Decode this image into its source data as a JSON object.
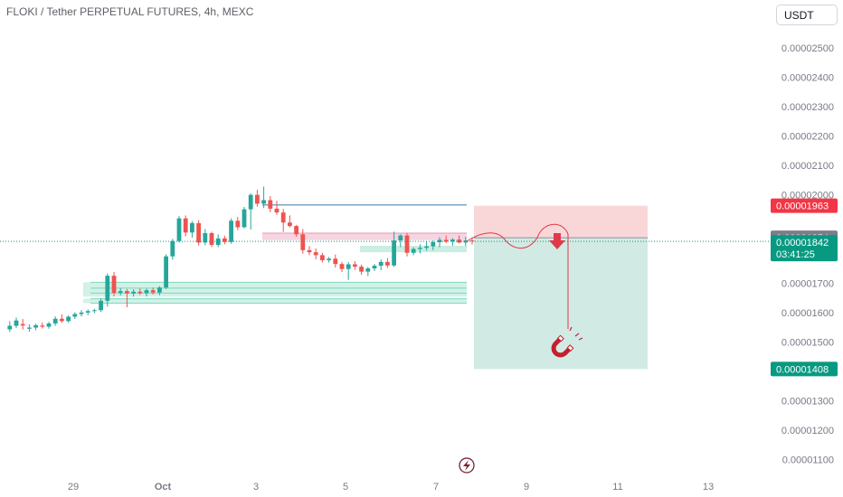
{
  "header": {
    "title": "FLOKI / Tether PERPETUAL FUTURES, 4h, MEXC"
  },
  "currency_button": {
    "label": "USDT"
  },
  "colors": {
    "up": "#26a69a",
    "down": "#ef5350",
    "stop_zone": "#f7cdd0",
    "target_zone": "#cce8e1",
    "current_price_tag": "#089981",
    "target_tag": "#089981",
    "stop_tag": "#f23645",
    "ref_tag": "#7c7f88"
  },
  "price_tags": {
    "stop": "0.00001963",
    "ref": "0.00001854",
    "current": "0.00001842",
    "countdown": "03:41:25",
    "target": "0.00001408"
  },
  "icons": {
    "magnet": "magnet-icon",
    "lightning": "lightning-icon",
    "arrow": "arrow-down-icon"
  },
  "chart_data": {
    "type": "candlestick",
    "symbol": "FLOKI / Tether PERPETUAL FUTURES",
    "interval": "4h",
    "exchange": "MEXC",
    "y_axis_ticks": [
      "0.00002500",
      "0.00002400",
      "0.00002300",
      "0.00002200",
      "0.00002100",
      "0.00002000",
      "0.00001700",
      "0.00001600",
      "0.00001500",
      "0.00001300",
      "0.00001200",
      "0.00001100"
    ],
    "ylim": [
      1.05e-05,
      2.57e-05
    ],
    "x_axis_ticks": [
      "29",
      "Oct",
      "3",
      "5",
      "7",
      "9",
      "11",
      "13"
    ],
    "candles": [
      [
        1.0,
        1.543e-05,
        1.571e-05,
        1.534e-05,
        1.555e-05
      ],
      [
        2.5,
        1.555e-05,
        1.583e-05,
        1.548e-05,
        1.573e-05
      ],
      [
        4.0,
        1.561e-05,
        1.578e-05,
        1.542e-05,
        1.556e-05
      ],
      [
        5.5,
        1.545e-05,
        1.56e-05,
        1.535e-05,
        1.549e-05
      ],
      [
        7.0,
        1.549e-05,
        1.562e-05,
        1.54e-05,
        1.557e-05
      ],
      [
        8.5,
        1.556e-05,
        1.566e-05,
        1.546e-05,
        1.552e-05
      ],
      [
        10.0,
        1.552e-05,
        1.568e-05,
        1.545e-05,
        1.563e-05
      ],
      [
        11.5,
        1.563e-05,
        1.587e-05,
        1.555e-05,
        1.579e-05
      ],
      [
        13.0,
        1.579e-05,
        1.594e-05,
        1.565e-05,
        1.571e-05
      ],
      [
        14.5,
        1.571e-05,
        1.59e-05,
        1.566e-05,
        1.586e-05
      ],
      [
        16.0,
        1.586e-05,
        1.601e-05,
        1.578e-05,
        1.595e-05
      ],
      [
        17.5,
        1.595e-05,
        1.608e-05,
        1.587e-05,
        1.6e-05
      ],
      [
        19.0,
        1.6e-05,
        1.611e-05,
        1.591e-05,
        1.605e-05
      ],
      [
        20.5,
        1.605e-05,
        1.613e-05,
        1.598e-05,
        1.608e-05
      ],
      [
        22.0,
        1.608e-05,
        1.648e-05,
        1.602e-05,
        1.64e-05
      ],
      [
        23.5,
        1.64e-05,
        1.733e-05,
        1.62e-05,
        1.725e-05
      ],
      [
        25.0,
        1.725e-05,
        1.738e-05,
        1.655e-05,
        1.667e-05
      ],
      [
        26.5,
        1.667e-05,
        1.684e-05,
        1.658e-05,
        1.673e-05
      ],
      [
        28.0,
        1.673e-05,
        1.68e-05,
        1.618e-05,
        1.665e-05
      ],
      [
        29.5,
        1.665e-05,
        1.679e-05,
        1.654e-05,
        1.671e-05
      ],
      [
        31.0,
        1.671e-05,
        1.682e-05,
        1.66e-05,
        1.666e-05
      ],
      [
        32.5,
        1.666e-05,
        1.681e-05,
        1.655e-05,
        1.676e-05
      ],
      [
        34.0,
        1.676e-05,
        1.685e-05,
        1.661e-05,
        1.668e-05
      ],
      [
        35.5,
        1.668e-05,
        1.69e-05,
        1.659e-05,
        1.685e-05
      ],
      [
        37.0,
        1.685e-05,
        1.798e-05,
        1.68e-05,
        1.791e-05
      ],
      [
        38.5,
        1.791e-05,
        1.85e-05,
        1.78e-05,
        1.843e-05
      ],
      [
        40.0,
        1.843e-05,
        1.928e-05,
        1.838e-05,
        1.92e-05
      ],
      [
        41.5,
        1.92e-05,
        1.93e-05,
        1.859e-05,
        1.872e-05
      ],
      [
        43.0,
        1.872e-05,
        1.911e-05,
        1.854e-05,
        1.904e-05
      ],
      [
        44.5,
        1.904e-05,
        1.914e-05,
        1.828e-05,
        1.838e-05
      ],
      [
        46.0,
        1.838e-05,
        1.884e-05,
        1.829e-05,
        1.87e-05
      ],
      [
        47.5,
        1.87e-05,
        1.875e-05,
        1.823e-05,
        1.83e-05
      ],
      [
        49.0,
        1.83e-05,
        1.866e-05,
        1.822e-05,
        1.852e-05
      ],
      [
        50.5,
        1.852e-05,
        1.861e-05,
        1.832e-05,
        1.84e-05
      ],
      [
        52.0,
        1.84e-05,
        1.92e-05,
        1.834e-05,
        1.912e-05
      ],
      [
        53.5,
        1.912e-05,
        1.925e-05,
        1.88e-05,
        1.89e-05
      ],
      [
        55.0,
        1.89e-05,
        1.959e-05,
        1.886e-05,
        1.951e-05
      ],
      [
        56.5,
        1.951e-05,
        2.005e-05,
        1.882e-05,
        2e-05
      ],
      [
        58.0,
        2e-05,
        2.017e-05,
        1.96e-05,
        1.97e-05
      ],
      [
        59.5,
        1.97e-05,
        2.028e-05,
        1.955e-05,
        1.982e-05
      ],
      [
        61.0,
        1.982e-05,
        1.996e-05,
        1.941e-05,
        1.953e-05
      ],
      [
        62.5,
        1.953e-05,
        1.98e-05,
        1.932e-05,
        1.94e-05
      ],
      [
        64.0,
        1.94e-05,
        1.952e-05,
        1.874e-05,
        1.906e-05
      ],
      [
        65.5,
        1.906e-05,
        1.93e-05,
        1.889e-05,
        1.894e-05
      ],
      [
        67.0,
        1.894e-05,
        1.898e-05,
        1.858e-05,
        1.866e-05
      ],
      [
        68.5,
        1.866e-05,
        1.884e-05,
        1.8e-05,
        1.812e-05
      ],
      [
        70.0,
        1.812e-05,
        1.826e-05,
        1.795e-05,
        1.805e-05
      ],
      [
        71.5,
        1.805e-05,
        1.818e-05,
        1.781e-05,
        1.795e-05
      ],
      [
        73.0,
        1.795e-05,
        1.803e-05,
        1.77e-05,
        1.778e-05
      ],
      [
        74.5,
        1.778e-05,
        1.789e-05,
        1.77e-05,
        1.783e-05
      ],
      [
        76.0,
        1.783e-05,
        1.797e-05,
        1.753e-05,
        1.765e-05
      ],
      [
        77.5,
        1.765e-05,
        1.772e-05,
        1.738e-05,
        1.748e-05
      ],
      [
        79.0,
        1.748e-05,
        1.772e-05,
        1.711e-05,
        1.764e-05
      ],
      [
        80.5,
        1.764e-05,
        1.775e-05,
        1.745e-05,
        1.756e-05
      ],
      [
        82.0,
        1.756e-05,
        1.763e-05,
        1.728e-05,
        1.739e-05
      ],
      [
        83.5,
        1.739e-05,
        1.755e-05,
        1.724e-05,
        1.75e-05
      ],
      [
        85.0,
        1.75e-05,
        1.765e-05,
        1.741e-05,
        1.759e-05
      ],
      [
        86.5,
        1.759e-05,
        1.781e-05,
        1.744e-05,
        1.772e-05
      ],
      [
        88.0,
        1.772e-05,
        1.785e-05,
        1.752e-05,
        1.76e-05
      ],
      [
        89.5,
        1.76e-05,
        1.875e-05,
        1.755e-05,
        1.845e-05
      ],
      [
        91.0,
        1.845e-05,
        1.866e-05,
        1.822e-05,
        1.862e-05
      ],
      [
        92.5,
        1.862e-05,
        1.871e-05,
        1.791e-05,
        1.803e-05
      ],
      [
        94.0,
        1.803e-05,
        1.822e-05,
        1.795e-05,
        1.816e-05
      ],
      [
        95.5,
        1.816e-05,
        1.832e-05,
        1.801e-05,
        1.82e-05
      ],
      [
        97.0,
        1.82e-05,
        1.841e-05,
        1.81e-05,
        1.825e-05
      ],
      [
        98.5,
        1.825e-05,
        1.845e-05,
        1.812e-05,
        1.839e-05
      ],
      [
        100.0,
        1.839e-05,
        1.856e-05,
        1.822e-05,
        1.847e-05
      ],
      [
        101.5,
        1.847e-05,
        1.862e-05,
        1.836e-05,
        1.841e-05
      ],
      [
        103.0,
        1.841e-05,
        1.853e-05,
        1.827e-05,
        1.848e-05
      ],
      [
        104.5,
        1.848e-05,
        1.862e-05,
        1.835e-05,
        1.838e-05
      ],
      [
        106.0,
        1.838e-05,
        1.857e-05,
        1.826e-05,
        1.845e-05
      ],
      [
        107.5,
        1.845e-05,
        1.855e-05,
        1.831e-05,
        1.842e-05
      ]
    ],
    "zones": {
      "short_position": {
        "entry": 1.854e-05,
        "stop": 1.963e-05,
        "target": 1.408e-05
      },
      "resistance_band": [
        1.846e-05,
        1.87e-05
      ],
      "support_bands": [
        [
          1.654e-05,
          1.703e-05
        ],
        [
          1.632e-05,
          1.647e-05
        ]
      ],
      "top_line": 1.966e-05
    },
    "current_price": 1.842e-05
  }
}
